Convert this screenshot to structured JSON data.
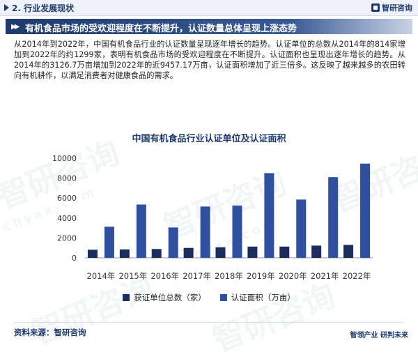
{
  "header": {
    "section": "2. 行业发展现状",
    "brand": "智研咨询"
  },
  "headline": "有机食品市场的受欢迎程度在不断提升，认证数量总体呈现上涨态势",
  "paragraph": "从2014年到2022年，中国有机食品行业的认证数量呈现逐年增长的趋势。认证单位的总数从2014年的814家增加到2022年的约1299家，表明有机食品市场的受欢迎程度在不断提升。认证面积也呈现出逐年增长的趋势。从2014年的3126.7万亩增加到2022年的近9457.17万亩，认证面积增加了近三倍多。这反映了越来越多的农田转向有机耕作，以满足消费者对健康食品的需求。",
  "watermark": "智研咨询",
  "watermark_url": "chyxx.com",
  "chart_data": {
    "type": "bar",
    "title": "中国有机食品行业认证单位及认证面积",
    "categories": [
      "2014年",
      "2015年",
      "2016年",
      "2017年",
      "2018年",
      "2019年",
      "2020年",
      "2021年",
      "2022年"
    ],
    "series": [
      {
        "name": "获证单位总数（家）",
        "color": "#1b2d5c",
        "values": [
          814,
          850,
          890,
          1000,
          1060,
          1130,
          1130,
          1230,
          1299
        ]
      },
      {
        "name": "认证面积（万亩）",
        "color": "#2f50a0",
        "values": [
          3126.7,
          5350,
          3050,
          5150,
          5250,
          8500,
          5850,
          8100,
          9457.17
        ]
      }
    ],
    "yticks": [
      0,
      2000,
      4000,
      6000,
      8000,
      10000
    ],
    "ylim": [
      0,
      10000
    ],
    "legend_position": "bottom"
  },
  "footer": {
    "source": "资料来源：智研咨询",
    "brand": "智领产业 研判未来"
  }
}
